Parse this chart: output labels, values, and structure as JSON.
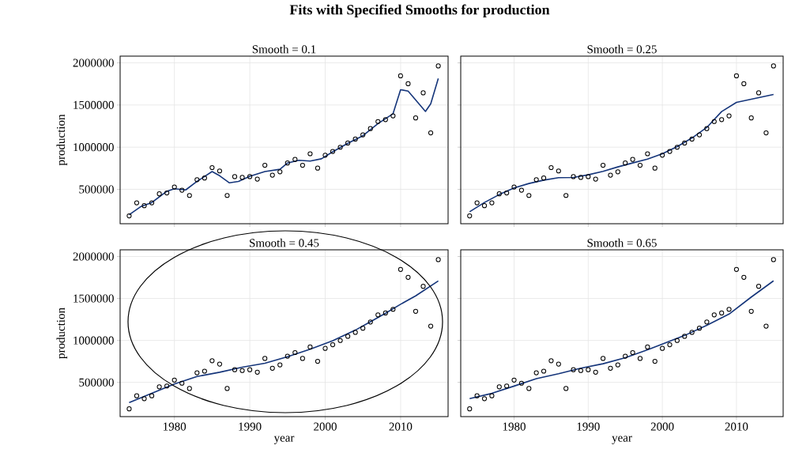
{
  "chart_data": [
    {
      "type": "scatter",
      "title": "Fits with Specified Smooths for production",
      "subtitle": "Smooth = 0.1",
      "ylabel": "production",
      "xlim": [
        1972.8,
        2016.3
      ],
      "ylim": [
        92000,
        2080000
      ],
      "xticks": [
        1980,
        1990,
        2000,
        2010
      ],
      "yticks": [
        500000,
        1000000,
        1500000,
        2000000
      ],
      "grid": true,
      "tick_labels": "y",
      "series": [
        {
          "type": "scatter",
          "marker": "circle",
          "color": "#000000",
          "x": [
            1974,
            1975,
            1976,
            1977,
            1978,
            1979,
            1980,
            1981,
            1982,
            1983,
            1984,
            1985,
            1986,
            1987,
            1988,
            1989,
            1990,
            1991,
            1992,
            1993,
            1994,
            1995,
            1996,
            1997,
            1998,
            1999,
            2000,
            2001,
            2002,
            2003,
            2004,
            2005,
            2006,
            2007,
            2008,
            2009,
            2010,
            2011,
            2012,
            2013,
            2014,
            2015
          ],
          "values": [
            185000,
            340000,
            306000,
            340000,
            447000,
            457000,
            527000,
            490000,
            427000,
            614000,
            634000,
            758000,
            718000,
            427000,
            651000,
            641000,
            651000,
            621000,
            785000,
            668000,
            708000,
            812000,
            855000,
            785000,
            922000,
            751000,
            905000,
            949000,
            999000,
            1049000,
            1096000,
            1146000,
            1220000,
            1304000,
            1327000,
            1371000,
            1846000,
            1752000,
            1347000,
            1645000,
            1170000,
            1963000
          ]
        },
        {
          "type": "line",
          "marker": "none",
          "color": "#15357a",
          "x": [
            1974,
            1975.5,
            1977,
            1979,
            1980,
            1981.5,
            1983,
            1985,
            1986,
            1987.3,
            1988.5,
            1990,
            1992,
            1994,
            1995,
            1996.5,
            1998,
            1999.5,
            2001,
            2003,
            2005,
            2007,
            2009,
            2010,
            2011,
            2013.3,
            2014,
            2015
          ],
          "values": [
            199000,
            293000,
            343000,
            477000,
            507000,
            493000,
            594000,
            711000,
            661000,
            577000,
            594000,
            654000,
            711000,
            738000,
            812000,
            845000,
            835000,
            862000,
            945000,
            1046000,
            1136000,
            1280000,
            1397000,
            1682000,
            1665000,
            1424000,
            1515000,
            1816000
          ]
        }
      ]
    },
    {
      "type": "scatter",
      "subtitle": "Smooth = 0.25",
      "xlim": [
        1972.8,
        2016.3
      ],
      "ylim": [
        92000,
        2080000
      ],
      "xticks": [
        1980,
        1990,
        2000,
        2010
      ],
      "yticks": [
        500000,
        1000000,
        1500000,
        2000000
      ],
      "grid": true,
      "tick_labels": false,
      "series": [
        {
          "type": "scatter",
          "marker": "circle",
          "color": "#000000",
          "x": [
            1974,
            1975,
            1976,
            1977,
            1978,
            1979,
            1980,
            1981,
            1982,
            1983,
            1984,
            1985,
            1986,
            1987,
            1988,
            1989,
            1990,
            1991,
            1992,
            1993,
            1994,
            1995,
            1996,
            1997,
            1998,
            1999,
            2000,
            2001,
            2002,
            2003,
            2004,
            2005,
            2006,
            2007,
            2008,
            2009,
            2010,
            2011,
            2012,
            2013,
            2014,
            2015
          ],
          "values": [
            185000,
            340000,
            306000,
            340000,
            447000,
            457000,
            527000,
            490000,
            427000,
            614000,
            634000,
            758000,
            718000,
            427000,
            651000,
            641000,
            651000,
            621000,
            785000,
            668000,
            708000,
            812000,
            855000,
            785000,
            922000,
            751000,
            905000,
            949000,
            999000,
            1049000,
            1096000,
            1146000,
            1220000,
            1304000,
            1327000,
            1371000,
            1846000,
            1752000,
            1347000,
            1645000,
            1170000,
            1963000
          ]
        },
        {
          "type": "line",
          "marker": "none",
          "color": "#15357a",
          "x": [
            1974,
            1976,
            1978,
            1980,
            1982,
            1984,
            1986,
            1988,
            1990,
            1992,
            1994,
            1996,
            1998,
            2000,
            2002,
            2004,
            2006,
            2008,
            2010,
            2012,
            2015
          ],
          "values": [
            234000,
            344000,
            438000,
            516000,
            569000,
            609000,
            638000,
            641000,
            672000,
            713000,
            766000,
            813000,
            859000,
            922000,
            1006000,
            1109000,
            1234000,
            1422000,
            1531000,
            1569000,
            1625000
          ]
        }
      ]
    },
    {
      "type": "scatter",
      "subtitle": "Smooth = 0.45",
      "xlabel": "year",
      "ylabel": "production",
      "xlim": [
        1972.8,
        2016.3
      ],
      "ylim": [
        92000,
        2080000
      ],
      "xticks": [
        1980,
        1990,
        2000,
        2010
      ],
      "yticks": [
        500000,
        1000000,
        1500000,
        2000000
      ],
      "grid": true,
      "series": [
        {
          "type": "scatter",
          "marker": "circle",
          "color": "#000000",
          "x": [
            1974,
            1975,
            1976,
            1977,
            1978,
            1979,
            1980,
            1981,
            1982,
            1983,
            1984,
            1985,
            1986,
            1987,
            1988,
            1989,
            1990,
            1991,
            1992,
            1993,
            1994,
            1995,
            1996,
            1997,
            1998,
            1999,
            2000,
            2001,
            2002,
            2003,
            2004,
            2005,
            2006,
            2007,
            2008,
            2009,
            2010,
            2011,
            2012,
            2013,
            2014,
            2015
          ],
          "values": [
            185000,
            340000,
            306000,
            340000,
            447000,
            457000,
            527000,
            490000,
            427000,
            614000,
            634000,
            758000,
            718000,
            427000,
            651000,
            641000,
            651000,
            621000,
            785000,
            668000,
            708000,
            812000,
            855000,
            785000,
            922000,
            751000,
            905000,
            949000,
            999000,
            1049000,
            1096000,
            1146000,
            1220000,
            1304000,
            1327000,
            1371000,
            1846000,
            1752000,
            1347000,
            1645000,
            1170000,
            1963000
          ]
        },
        {
          "type": "line",
          "marker": "none",
          "color": "#15357a",
          "x": [
            1974,
            1977,
            1980,
            1983,
            1986,
            1989,
            1992,
            1995,
            1998,
            2001,
            2004,
            2006,
            2008,
            2010,
            2012,
            2015
          ],
          "values": [
            259000,
            370000,
            480000,
            570000,
            621000,
            681000,
            728000,
            805000,
            895000,
            996000,
            1123000,
            1223000,
            1324000,
            1431000,
            1531000,
            1709000
          ]
        }
      ]
    },
    {
      "type": "scatter",
      "subtitle": "Smooth = 0.65",
      "xlabel": "year",
      "xlim": [
        1972.8,
        2016.3
      ],
      "ylim": [
        92000,
        2080000
      ],
      "xticks": [
        1980,
        1990,
        2000,
        2010
      ],
      "yticks": [
        500000,
        1000000,
        1500000,
        2000000
      ],
      "grid": true,
      "tick_labels": "x",
      "series": [
        {
          "type": "scatter",
          "marker": "circle",
          "color": "#000000",
          "x": [
            1974,
            1975,
            1976,
            1977,
            1978,
            1979,
            1980,
            1981,
            1982,
            1983,
            1984,
            1985,
            1986,
            1987,
            1988,
            1989,
            1990,
            1991,
            1992,
            1993,
            1994,
            1995,
            1996,
            1997,
            1998,
            1999,
            2000,
            2001,
            2002,
            2003,
            2004,
            2005,
            2006,
            2007,
            2008,
            2009,
            2010,
            2011,
            2012,
            2013,
            2014,
            2015
          ],
          "values": [
            185000,
            340000,
            306000,
            340000,
            447000,
            457000,
            527000,
            490000,
            427000,
            614000,
            634000,
            758000,
            718000,
            427000,
            651000,
            641000,
            651000,
            621000,
            785000,
            668000,
            708000,
            812000,
            855000,
            785000,
            922000,
            751000,
            905000,
            949000,
            999000,
            1049000,
            1096000,
            1146000,
            1220000,
            1304000,
            1327000,
            1371000,
            1846000,
            1752000,
            1347000,
            1645000,
            1170000,
            1963000
          ]
        },
        {
          "type": "line",
          "marker": "none",
          "color": "#15357a",
          "x": [
            1974,
            1977,
            1980,
            1983,
            1986,
            1989,
            1992,
            1995,
            1998,
            2000,
            2003,
            2006,
            2009,
            2012,
            2015
          ],
          "values": [
            307000,
            369000,
            456000,
            544000,
            603000,
            669000,
            722000,
            794000,
            888000,
            956000,
            1059000,
            1180000,
            1314000,
            1517000,
            1710000
          ]
        }
      ]
    }
  ]
}
